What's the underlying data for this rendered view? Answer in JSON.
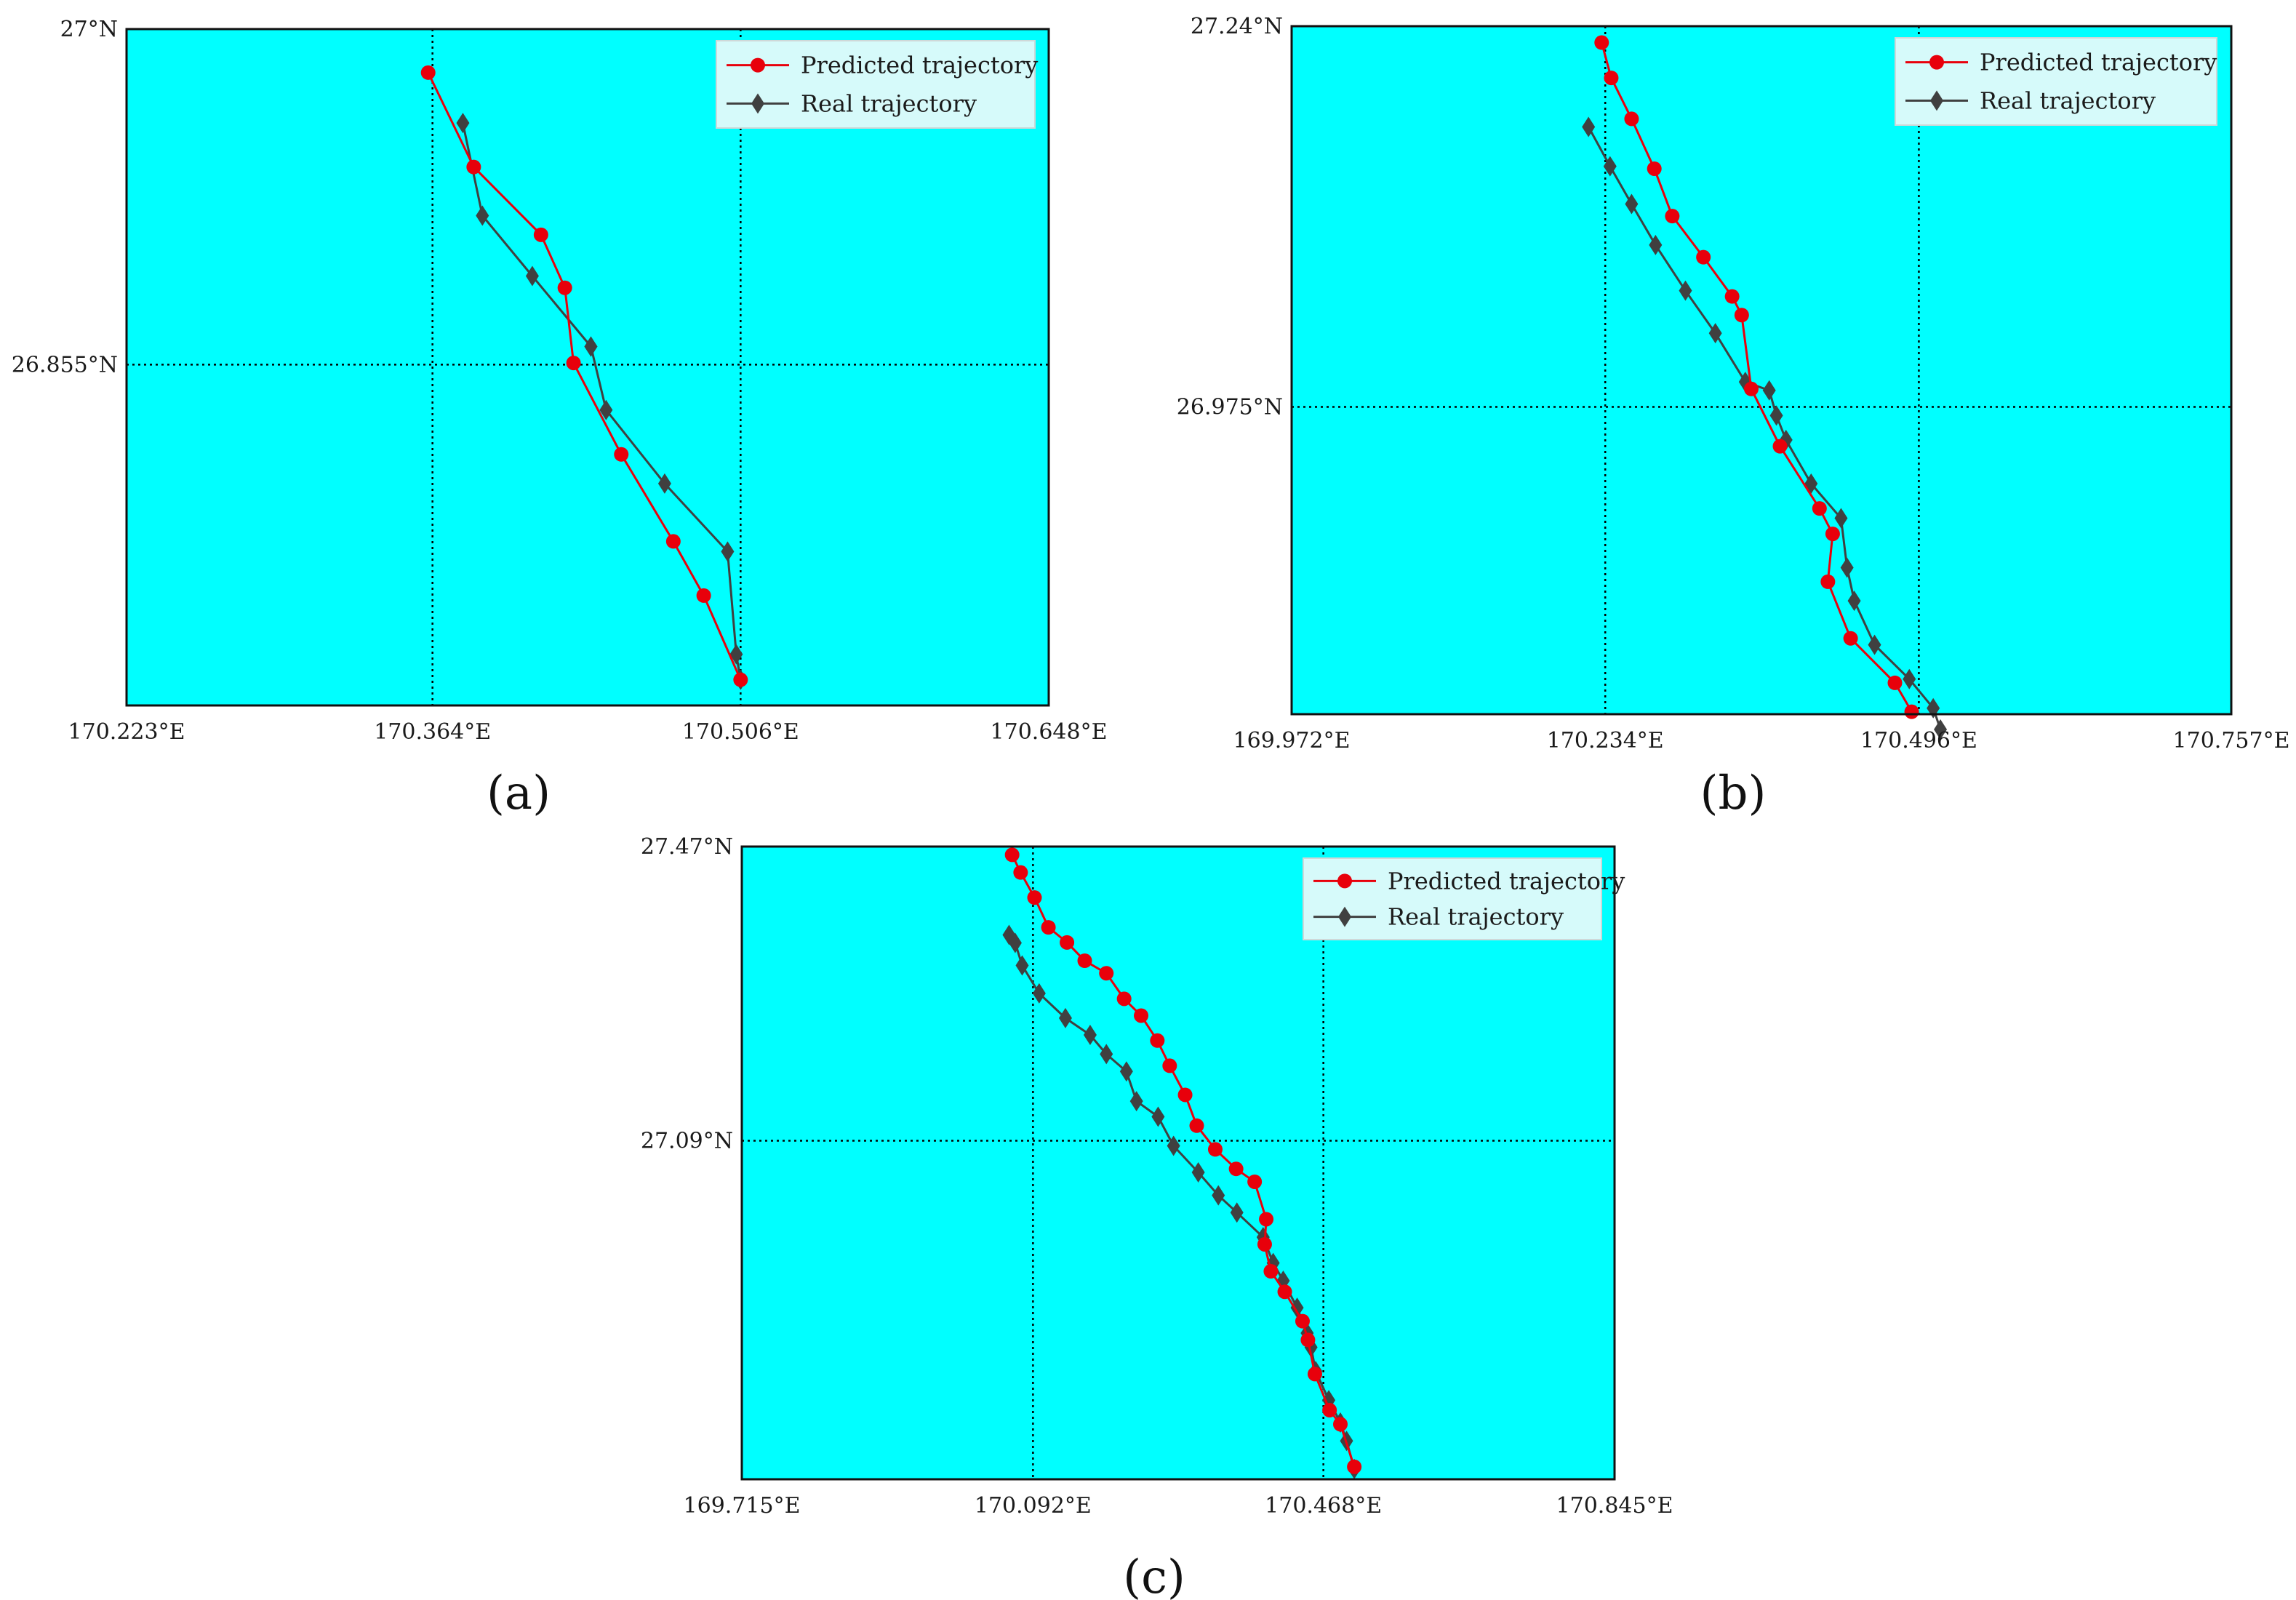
{
  "colors": {
    "background": "#00FFFF",
    "predicted": "#E8000B",
    "real": "#404040",
    "legend_bg": "#D6FAFA"
  },
  "legend": {
    "predicted_label": "Predicted trajectory",
    "real_label": "Real trajectory"
  },
  "chart_data": [
    {
      "type": "line",
      "panel_label": "(a)",
      "legend_position": "top-right",
      "grid": true,
      "xlim": [
        170.223,
        170.648
      ],
      "ylim": [
        26.7077,
        27.0
      ],
      "x_ticks": [
        170.223,
        170.364,
        170.506,
        170.648
      ],
      "x_tick_labels": [
        "170.223°E",
        "170.364°E",
        "170.506°E",
        "170.648°E"
      ],
      "y_ticks": [
        26.855,
        27.0
      ],
      "y_tick_labels": [
        "26.855°N",
        "27°N"
      ],
      "series": [
        {
          "name": "Predicted trajectory",
          "marker": "circle",
          "x": [
            170.362,
            170.383,
            170.414,
            170.425,
            170.429,
            170.451,
            170.475,
            170.489,
            170.506
          ],
          "y": [
            26.9812,
            26.9404,
            26.9111,
            26.8882,
            26.8557,
            26.8162,
            26.7786,
            26.7552,
            26.7188
          ]
        },
        {
          "name": "Real trajectory",
          "marker": "diamond",
          "x": [
            170.378,
            170.387,
            170.41,
            170.437,
            170.437,
            170.444,
            170.471,
            170.5,
            170.504,
            170.506
          ],
          "y": [
            26.9594,
            26.9194,
            26.8933,
            26.8628,
            26.8628,
            26.8354,
            26.8036,
            26.7742,
            26.7298,
            26.7188
          ]
        }
      ]
    },
    {
      "type": "line",
      "panel_label": "(b)",
      "legend_position": "top-right",
      "grid": true,
      "xlim": [
        169.972,
        170.757
      ],
      "ylim": [
        26.7611,
        27.24
      ],
      "x_ticks": [
        169.972,
        170.234,
        170.496,
        170.757
      ],
      "x_tick_labels": [
        "169.972°E",
        "170.234°E",
        "170.496°E",
        "170.757°E"
      ],
      "y_ticks": [
        26.975,
        27.24
      ],
      "y_tick_labels": [
        "26.975°N",
        "27.24°N"
      ],
      "series": [
        {
          "name": "Predicted trajectory",
          "marker": "circle",
          "x": [
            170.231,
            170.239,
            170.256,
            170.275,
            170.29,
            170.316,
            170.34,
            170.348,
            170.356,
            170.38,
            170.413,
            170.424,
            170.42,
            170.439,
            170.476,
            170.49
          ],
          "y": [
            27.2286,
            27.204,
            27.1755,
            27.1408,
            27.1078,
            27.0792,
            27.0519,
            27.0389,
            26.9875,
            26.9476,
            26.9043,
            26.8866,
            26.8533,
            26.8139,
            26.7829,
            26.7628
          ]
        },
        {
          "name": "Real trajectory",
          "marker": "diamond",
          "x": [
            170.22,
            170.238,
            170.256,
            170.276,
            170.301,
            170.326,
            170.351,
            170.371,
            170.377,
            170.385,
            170.406,
            170.431,
            170.436,
            170.442,
            170.459,
            170.488,
            170.508,
            170.514
          ],
          "y": [
            27.1699,
            27.1425,
            27.1162,
            27.0877,
            27.0559,
            27.0263,
            26.9924,
            26.9865,
            26.969,
            26.952,
            26.9216,
            26.8975,
            26.8631,
            26.84,
            26.8094,
            26.7855,
            26.7653,
            26.7505
          ]
        }
      ]
    },
    {
      "type": "line",
      "panel_label": "(c)",
      "legend_position": "top-right",
      "grid": true,
      "xlim": [
        169.715,
        170.845
      ],
      "ylim": [
        26.6526,
        27.47
      ],
      "x_ticks": [
        169.715,
        170.092,
        170.468,
        170.845
      ],
      "x_tick_labels": [
        "169.715°E",
        "170.092°E",
        "170.468°E",
        "170.845°E"
      ],
      "y_ticks": [
        27.09,
        27.47
      ],
      "y_tick_labels": [
        "27.09°N",
        "27.47°N"
      ],
      "series": [
        {
          "name": "Predicted trajectory",
          "marker": "circle",
          "x": [
            170.065,
            170.076,
            170.094,
            170.112,
            170.136,
            170.159,
            170.187,
            170.21,
            170.232,
            170.253,
            170.269,
            170.289,
            170.304,
            170.328,
            170.355,
            170.379,
            170.394,
            170.392,
            170.4,
            170.418,
            170.441,
            170.448,
            170.457,
            170.476,
            170.49,
            170.508
          ],
          "y": [
            27.4593,
            27.4365,
            27.4041,
            27.3656,
            27.3461,
            27.3225,
            27.3063,
            27.2733,
            27.2516,
            27.2194,
            27.1868,
            27.1492,
            27.1094,
            27.0788,
            27.0536,
            27.0369,
            26.9885,
            26.9561,
            26.9213,
            26.8948,
            26.8568,
            26.8326,
            26.7885,
            26.7419,
            26.7237,
            26.6687
          ]
        },
        {
          "name": "Real trajectory",
          "marker": "diamond",
          "x": [
            170.061,
            170.069,
            170.078,
            170.1,
            170.134,
            170.166,
            170.187,
            170.213,
            170.226,
            170.254,
            170.274,
            170.306,
            170.332,
            170.356,
            170.39,
            170.403,
            170.416,
            170.434,
            170.447,
            170.452,
            170.458,
            170.475,
            170.49,
            170.498,
            170.508
          ],
          "y": [
            27.3558,
            27.3455,
            27.3164,
            27.2803,
            27.2484,
            27.2267,
            27.2019,
            27.1794,
            27.1411,
            27.121,
            27.0834,
            27.0491,
            27.0194,
            26.9972,
            26.9653,
            26.932,
            26.9091,
            26.8742,
            26.8414,
            26.8231,
            26.7924,
            26.7548,
            26.7259,
            26.7022,
            26.666
          ]
        }
      ]
    }
  ]
}
